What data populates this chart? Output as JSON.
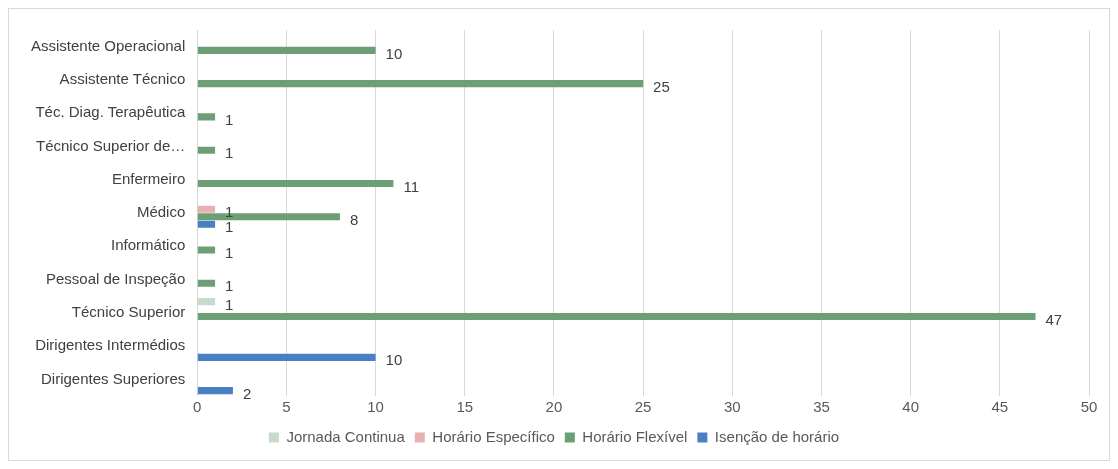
{
  "chart_data": {
    "type": "bar",
    "orientation": "horizontal",
    "categories": [
      "Assistente Operacional",
      "Assistente Técnico",
      "Téc. Diag. Terapêutica",
      "Técnico Superior de…",
      "Enfermeiro",
      "Médico",
      "Informático",
      "Pessoal de Inspeção",
      "Técnico Superior",
      "Dirigentes Intermédios",
      "Dirigentes Superiores"
    ],
    "series": [
      {
        "name": "Jornada Continua",
        "color": "#c5dcca",
        "values": [
          null,
          null,
          null,
          null,
          null,
          null,
          null,
          null,
          1,
          null,
          null
        ]
      },
      {
        "name": "Horário Específico",
        "color": "#e8b0b0",
        "values": [
          null,
          null,
          null,
          null,
          null,
          1,
          null,
          null,
          null,
          null,
          null
        ]
      },
      {
        "name": "Horário Flexível",
        "color": "#6c9f76",
        "values": [
          10,
          25,
          1,
          1,
          11,
          8,
          1,
          1,
          47,
          null,
          null
        ]
      },
      {
        "name": "Isenção de horário",
        "color": "#4a7fc4",
        "values": [
          null,
          null,
          null,
          null,
          null,
          1,
          null,
          null,
          null,
          10,
          2
        ]
      }
    ],
    "xlim": [
      0,
      50
    ],
    "xticks": [
      0,
      5,
      10,
      15,
      20,
      25,
      30,
      35,
      40,
      45,
      50
    ],
    "grid": "x",
    "legend": "bottom",
    "data_labels": true
  }
}
